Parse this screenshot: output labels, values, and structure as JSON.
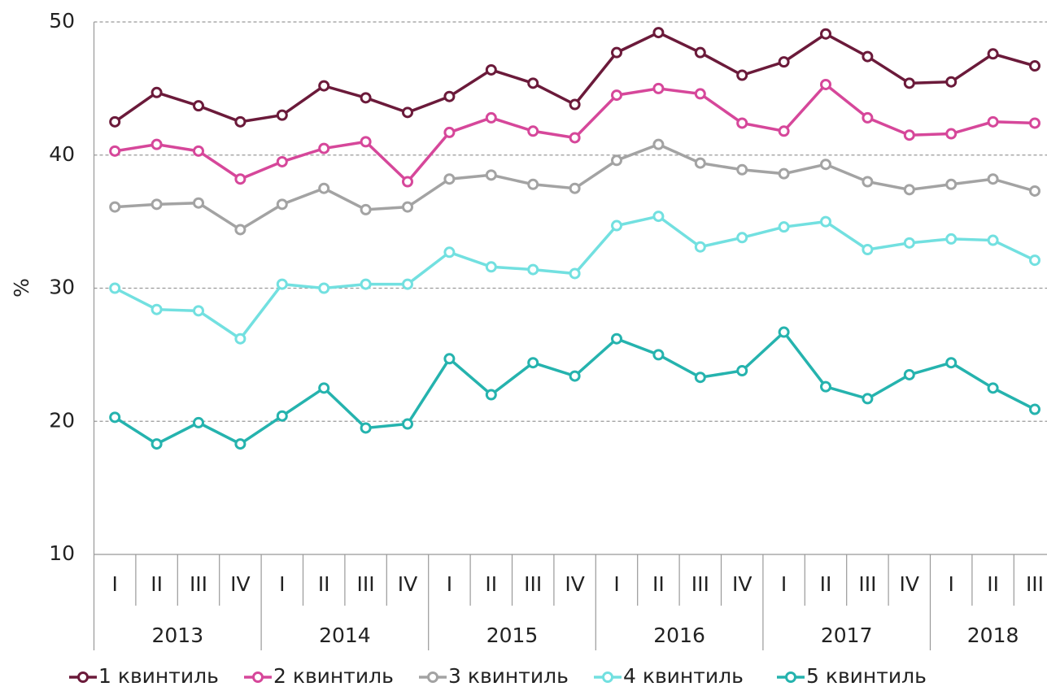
{
  "chart_data": {
    "type": "line",
    "ylabel": "%",
    "categories": [
      "I",
      "II",
      "III",
      "IV",
      "I",
      "II",
      "III",
      "IV",
      "I",
      "II",
      "III",
      "IV",
      "I",
      "II",
      "III",
      "IV",
      "I",
      "II",
      "III",
      "IV",
      "I",
      "II",
      "III"
    ],
    "year_groups": [
      "2013",
      "2014",
      "2015",
      "2016",
      "2017",
      "2018"
    ],
    "ylim": [
      10,
      50
    ],
    "yticks": [
      10,
      20,
      30,
      40,
      50
    ],
    "grid": true,
    "series": [
      {
        "name": "1 квинтиль",
        "color": "#6b1a3a",
        "values": [
          42.5,
          44.7,
          43.7,
          42.5,
          43.0,
          45.2,
          44.3,
          43.2,
          44.4,
          46.4,
          45.4,
          43.8,
          47.7,
          49.2,
          47.7,
          46.0,
          47.0,
          49.1,
          47.4,
          45.4,
          45.5,
          47.6,
          46.7
        ]
      },
      {
        "name": "2 квинтиль",
        "color": "#d6479a",
        "values": [
          40.3,
          40.8,
          40.3,
          38.2,
          39.5,
          40.5,
          41.0,
          38.0,
          41.7,
          42.8,
          41.8,
          41.3,
          44.5,
          45.0,
          44.6,
          42.4,
          41.8,
          45.3,
          42.8,
          41.5,
          41.6,
          42.5,
          42.4
        ]
      },
      {
        "name": "3 квинтиль",
        "color": "#a3a3a3",
        "values": [
          36.1,
          36.3,
          36.4,
          34.4,
          36.3,
          37.5,
          35.9,
          36.1,
          38.2,
          38.5,
          37.8,
          37.5,
          39.6,
          40.8,
          39.4,
          38.9,
          38.6,
          39.3,
          38.0,
          37.4,
          37.8,
          38.2,
          37.3
        ]
      },
      {
        "name": "4 квинтиль",
        "color": "#72e0e0",
        "values": [
          30.0,
          28.4,
          28.3,
          26.2,
          30.3,
          30.0,
          30.3,
          30.3,
          32.7,
          31.6,
          31.4,
          31.1,
          34.7,
          35.4,
          33.1,
          33.8,
          34.6,
          35.0,
          32.9,
          33.4,
          33.7,
          33.6,
          32.1
        ]
      },
      {
        "name": "5 квинтиль",
        "color": "#25b3ae",
        "values": [
          20.3,
          18.3,
          19.9,
          18.3,
          20.4,
          22.5,
          19.5,
          19.8,
          24.7,
          22.0,
          24.4,
          23.4,
          26.2,
          25.0,
          23.3,
          23.8,
          26.7,
          22.6,
          21.7,
          23.5,
          24.4,
          22.5,
          20.9
        ]
      }
    ]
  }
}
